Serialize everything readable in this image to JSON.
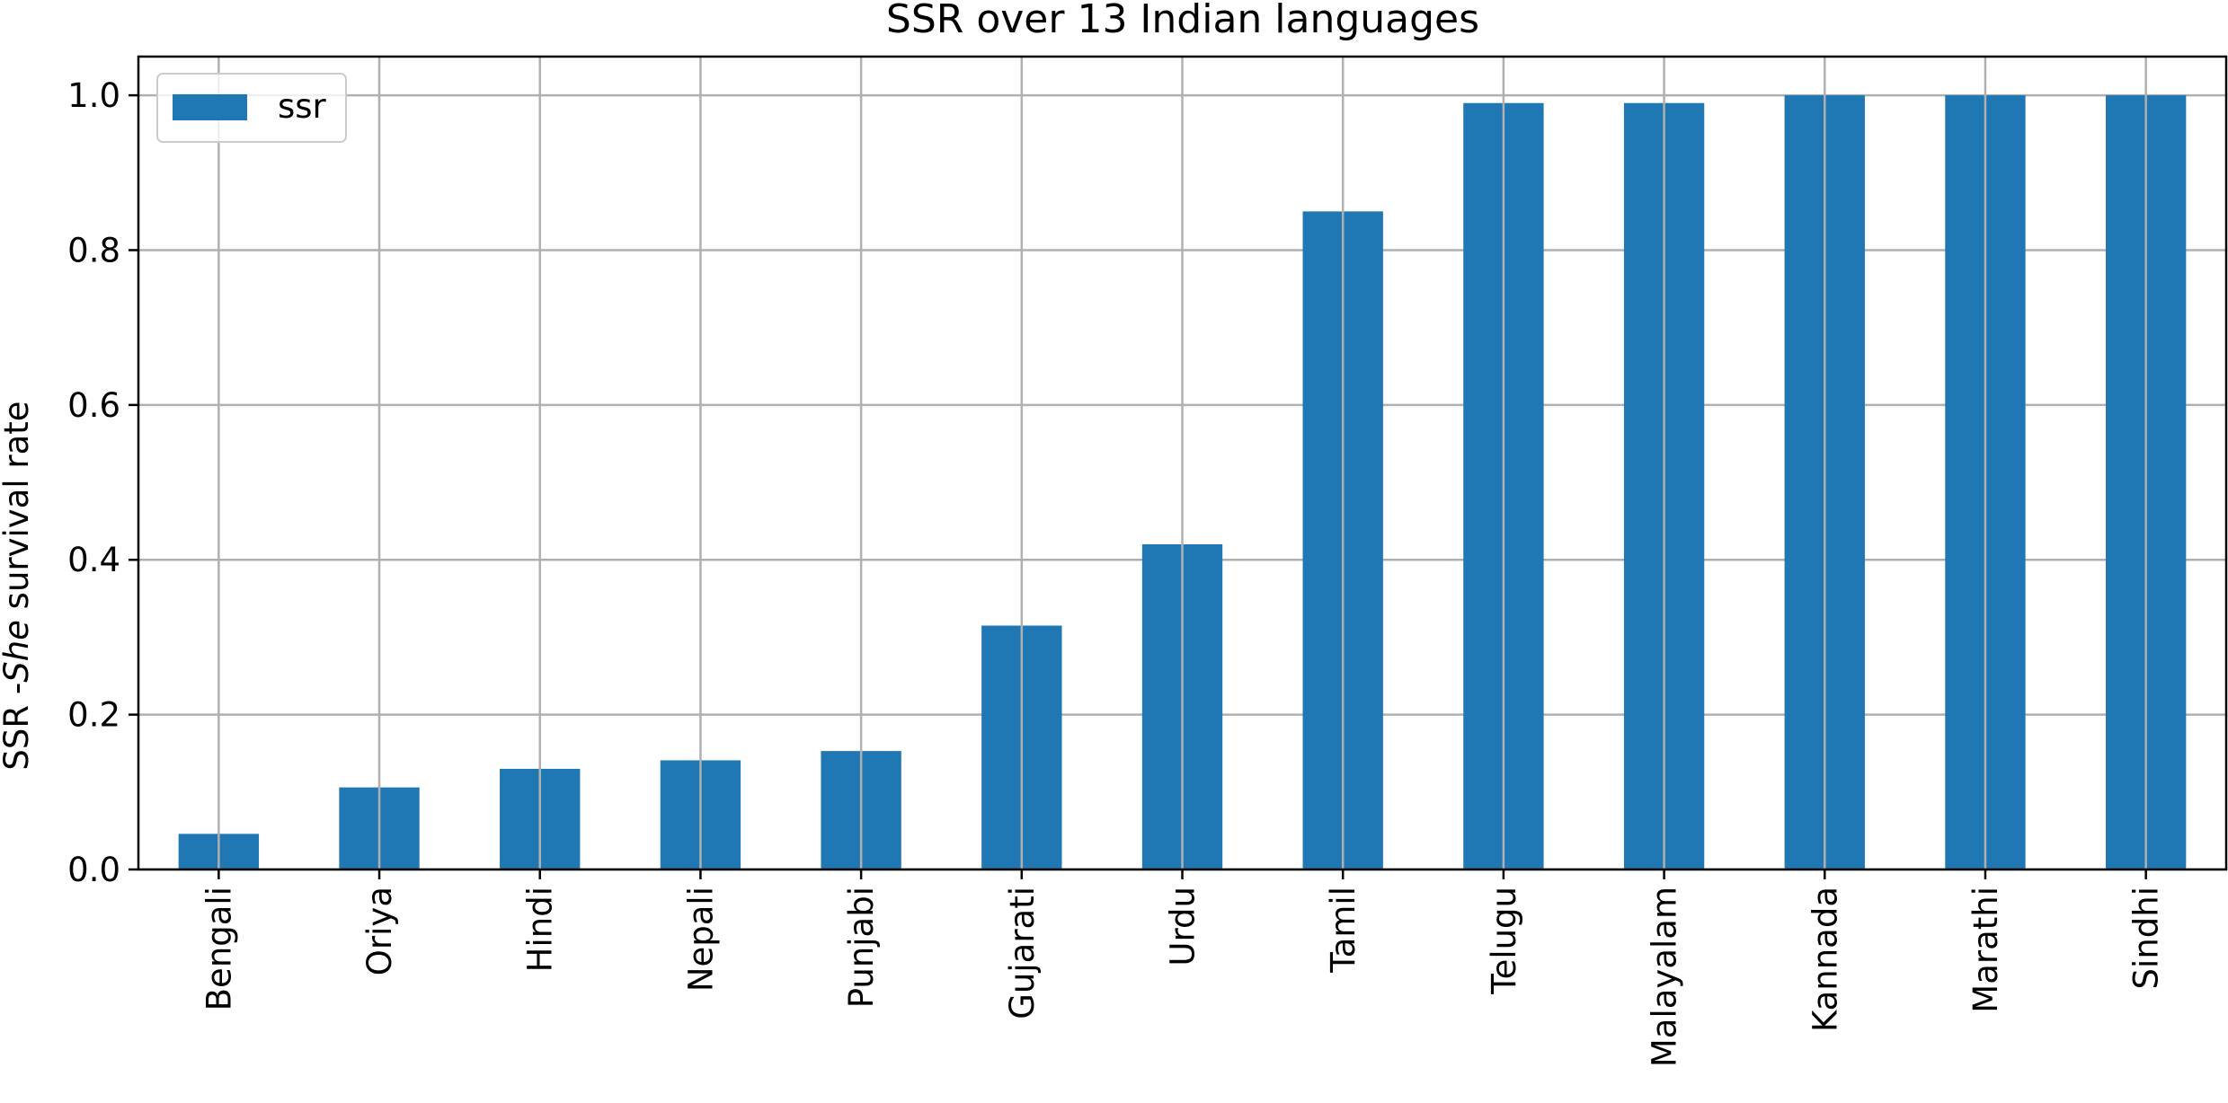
{
  "chart_data": {
    "type": "bar",
    "title": "SSR over 13 Indian languages",
    "xlabel": "",
    "ylabel": {
      "prefix": "SSR -",
      "italic": "She",
      "suffix": " survival rate"
    },
    "categories": [
      "Bengali",
      "Oriya",
      "Hindi",
      "Nepali",
      "Punjabi",
      "Gujarati",
      "Urdu",
      "Tamil",
      "Telugu",
      "Malayalam",
      "Kannada",
      "Marathi",
      "Sindhi"
    ],
    "series": [
      {
        "name": "ssr",
        "color": "#1f77b4",
        "values": [
          0.046,
          0.106,
          0.13,
          0.141,
          0.153,
          0.315,
          0.42,
          0.85,
          0.99,
          0.99,
          1.0,
          1.0,
          1.0
        ]
      }
    ],
    "ylim": [
      0,
      1.05
    ],
    "yticks": [
      "0.0",
      "0.2",
      "0.4",
      "0.6",
      "0.8",
      "1.0"
    ],
    "grid": true,
    "legend_position": "top-left"
  }
}
